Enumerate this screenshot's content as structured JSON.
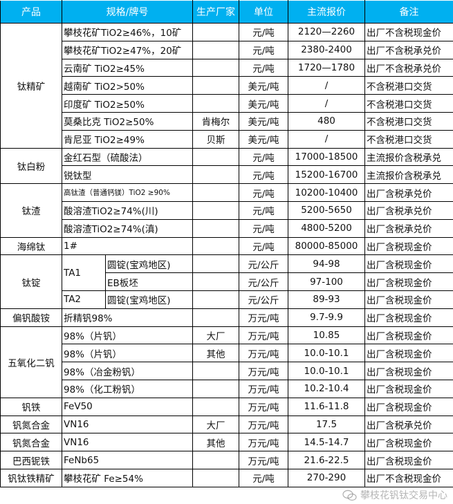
{
  "header": [
    "产品",
    "规格/牌号",
    "生产厂家",
    "单位",
    "主流报价",
    "备注"
  ],
  "groups": [
    {
      "product": "钛精矿",
      "rows": [
        {
          "spec": "攀枝花矿TiO2≥46%，10矿",
          "maker": "",
          "unit": "元/吨",
          "price": "2120—2260",
          "note": "出厂不含税现金价"
        },
        {
          "spec": "攀枝花矿TiO2≥47%，20矿",
          "maker": "",
          "unit": "元/吨",
          "price": "2380-2400",
          "note": "出厂不含税承兑价"
        },
        {
          "spec": "云南矿 TiO2≥45%",
          "maker": "",
          "unit": "元/吨",
          "price": "1720—1780",
          "note": "出厂不含税承兑价"
        },
        {
          "spec": "越南矿 TiO2>50%",
          "maker": "",
          "unit": "美元/吨",
          "price": "/",
          "note": "不含税港口交货"
        },
        {
          "spec": "印度矿 TiO2≥50%",
          "maker": "",
          "unit": "美元/吨",
          "price": "/",
          "note": "不含税港口交货"
        },
        {
          "spec": "莫桑比克 TiO2≥50%",
          "maker": "肯梅尔",
          "unit": "美元/吨",
          "price": "480",
          "note": "不含税港口交货"
        },
        {
          "spec": "肯尼亚 TiO2≥49%",
          "maker": "贝斯",
          "unit": "美元/吨",
          "price": "/",
          "note": "不含税港口交货"
        }
      ]
    },
    {
      "product": "钛白粉",
      "rows": [
        {
          "spec": "金红石型（硫酸法）",
          "maker": "",
          "unit": "元/吨",
          "price": "17000-18500",
          "note": "主流报价含税承兑"
        },
        {
          "spec": "锐钛型",
          "maker": "",
          "unit": "元/吨",
          "price": "15200-16700",
          "note": "主流报价含税承兑"
        }
      ]
    },
    {
      "product": "钛渣",
      "rows": [
        {
          "spec": "高钛渣（普通钙镁）TiO2 ≥90%",
          "small": true,
          "maker": "",
          "unit": "元/吨",
          "price": "10200-10400",
          "note": "出厂含税承兑价"
        },
        {
          "spec": "酸溶渣TiO2≥74%(川)",
          "maker": "",
          "unit": "元/吨",
          "price": "5200-5650",
          "note": "出厂含税承兑价"
        },
        {
          "spec": "酸溶渣TiO2≥74%(滇)",
          "maker": "",
          "unit": "元/吨",
          "price": "4800-5200",
          "note": "出厂含税承兑价"
        }
      ]
    },
    {
      "product": "海绵钛",
      "rows": [
        {
          "spec": "1#",
          "maker": "",
          "unit": "元/吨",
          "price": "80000-85000",
          "note": "出厂含税现金价"
        }
      ]
    },
    {
      "product": "钛锭",
      "subgroups": [
        {
          "grade": "TA1",
          "rows": [
            {
              "spec": "圆锭(宝鸡地区)",
              "maker": "",
              "unit": "元/公斤",
              "price": "94-98",
              "note": "出厂含税现金价"
            },
            {
              "spec": "EB板坯",
              "maker": "",
              "unit": "元/公斤",
              "price": "97-100",
              "note": "出厂含税现金价"
            }
          ]
        },
        {
          "grade": "TA2",
          "rows": [
            {
              "spec": "圆锭(宝鸡地区)",
              "maker": "",
              "unit": "元/公斤",
              "price": "89-93",
              "note": "出厂含税现金价"
            }
          ]
        }
      ]
    },
    {
      "product": "偏钒酸铵",
      "rows": [
        {
          "spec": "折精钒98%",
          "maker": "",
          "unit": "万元/吨",
          "price": "9.7-9.9",
          "note": "出厂含税现金价"
        }
      ]
    },
    {
      "product": "五氧化二钒",
      "rows": [
        {
          "spec": "98%（片钒）",
          "maker": "大厂",
          "unit": "万元/吨",
          "price": "10.85",
          "note": "出厂含税现金价"
        },
        {
          "spec": "98%（片钒）",
          "maker": "其他",
          "unit": "万元/吨",
          "price": "10.0-10.1",
          "note": "出厂含税现金价"
        },
        {
          "spec": "98%（冶金粉钒）",
          "maker": "",
          "unit": "万元/吨",
          "price": "10.0-10.1",
          "note": "出厂含税现金价"
        },
        {
          "spec": "98%（化工粉钒）",
          "maker": "",
          "unit": "万元/吨",
          "price": "10.2-10.4",
          "note": "出厂含税现金价"
        }
      ]
    },
    {
      "product": "钒铁",
      "rows": [
        {
          "spec": "FeV50",
          "maker": "",
          "unit": "万元/吨",
          "price": "11.6-11.8",
          "note": "出厂含税现金价"
        }
      ]
    },
    {
      "product": "钒氮合金",
      "rows": [
        {
          "spec": "VN16",
          "maker": "大厂",
          "unit": "万元/吨",
          "price": "17.5",
          "note": "出厂含税承兑价"
        }
      ]
    },
    {
      "product": "钒氮合金",
      "rows": [
        {
          "spec": "VN16",
          "maker": "其他",
          "unit": "万元/吨",
          "price": "14.5-14.7",
          "note": "出厂含税现金价"
        }
      ]
    },
    {
      "product": "巴西铌铁",
      "rows": [
        {
          "spec": "FeNb65",
          "maker": "",
          "unit": "万元/吨",
          "price": "21.6-22.5",
          "note": "出厂含税现金价"
        }
      ]
    },
    {
      "product": "钒钛铁精矿",
      "rows": [
        {
          "spec": "攀枝花矿 Fe≥54%",
          "maker": "",
          "unit": "元/吨",
          "price": "270-290",
          "note": "出厂不含税现金价"
        }
      ]
    }
  ],
  "watermark": {
    "text": "攀枝花钒钛交易中心",
    "icon": "wechat-icon"
  },
  "colors": {
    "header_bg": "#00b0f0",
    "header_text": "#ffffff"
  }
}
